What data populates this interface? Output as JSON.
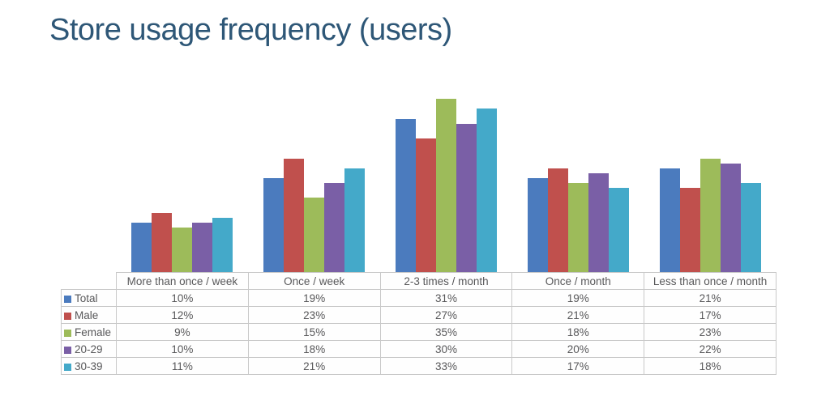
{
  "title": "Store usage frequency (users)",
  "colors": {
    "background": "#ffffff",
    "title_text": "#2e5777",
    "table_border": "#c9c9c9",
    "table_text": "#58585a"
  },
  "chart_data": {
    "type": "bar",
    "title": "Store usage frequency (users)",
    "categories": [
      "More than once / week",
      "Once / week",
      "2-3 times / month",
      "Once / month",
      "Less than once / month"
    ],
    "series": [
      {
        "name": "Total",
        "color": "#4b7bbe",
        "values": [
          10,
          19,
          31,
          19,
          21
        ]
      },
      {
        "name": "Male",
        "color": "#c0504d",
        "values": [
          12,
          23,
          27,
          21,
          17
        ]
      },
      {
        "name": "Female",
        "color": "#9dbb5a",
        "values": [
          9,
          15,
          35,
          18,
          23
        ]
      },
      {
        "name": "20-29",
        "color": "#7a5fa6",
        "values": [
          10,
          18,
          30,
          20,
          22
        ]
      },
      {
        "name": "30-39",
        "color": "#44a9c9",
        "values": [
          11,
          21,
          33,
          17,
          18
        ]
      }
    ],
    "value_suffix": "%",
    "ylim": [
      0,
      37
    ],
    "grid": false,
    "axes_visible": false,
    "legend_position": "table-left",
    "data_table_shown": true
  }
}
